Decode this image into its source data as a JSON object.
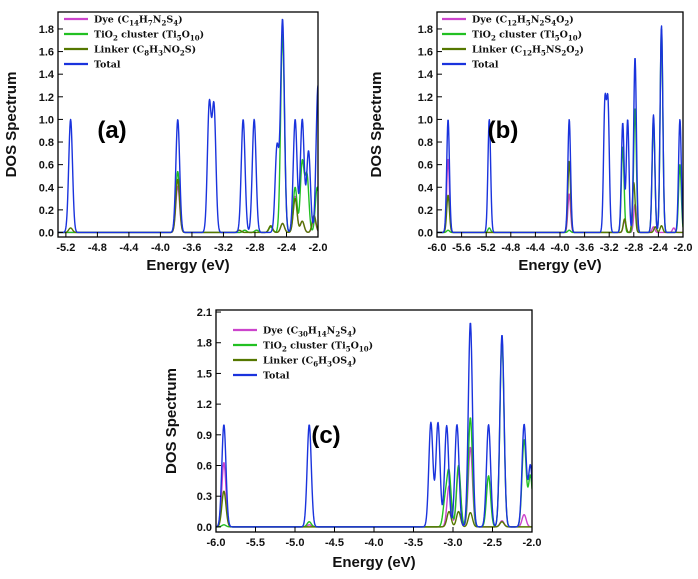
{
  "chart_data": [
    {
      "type": "line",
      "panel_label": "(a)",
      "xlabel": "Energy (eV)",
      "ylabel": "DOS Spectrum",
      "xlim": [
        -5.3,
        -2.0
      ],
      "ylim": [
        -0.04,
        1.95
      ],
      "xticks": [
        -5.2,
        -4.8,
        -4.4,
        -4.0,
        -3.6,
        -3.2,
        -2.8,
        -2.4,
        -2.0
      ],
      "xtick_labels": [
        "-5.2",
        "-4.8",
        "-4.4",
        "-4.0",
        "-3.6",
        "-3.2",
        "-2.8",
        "-2.4",
        "-2.0"
      ],
      "yticks": [
        0.0,
        0.2,
        0.4,
        0.6,
        0.8,
        1.0,
        1.2,
        1.4,
        1.6,
        1.8
      ],
      "ytick_labels": [
        "0.0",
        "0.2",
        "0.4",
        "0.6",
        "0.8",
        "1.0",
        "1.2",
        "1.4",
        "1.6",
        "1.8"
      ],
      "legend": [
        {
          "base": "Dye (C",
          "parts": [
            [
              "14",
              "sub"
            ],
            [
              "H",
              ""
            ],
            [
              "7",
              "sub"
            ],
            [
              "N",
              ""
            ],
            [
              "2",
              "sub"
            ],
            [
              "S",
              ""
            ],
            [
              "4",
              "sub"
            ],
            [
              ")",
              ""
            ]
          ]
        },
        {
          "base": "TiO",
          "parts": [
            [
              "2",
              "sub"
            ],
            [
              " cluster (Ti",
              ""
            ],
            [
              "5",
              "sub"
            ],
            [
              "O",
              ""
            ],
            [
              "10",
              "sub"
            ],
            [
              ")",
              ""
            ]
          ]
        },
        {
          "base": "Linker (C",
          "parts": [
            [
              "8",
              "sub"
            ],
            [
              "H",
              ""
            ],
            [
              "3",
              "sub"
            ],
            [
              "NO",
              ""
            ],
            [
              "2",
              "sub"
            ],
            [
              "S)",
              ""
            ]
          ]
        },
        {
          "base": "Total",
          "parts": []
        }
      ],
      "series": [
        {
          "name": "Dye",
          "color": "#cc44cc",
          "peaks": [
            [
              -3.78,
              0.41
            ],
            [
              -2.93,
              0.02
            ],
            [
              -2.78,
              0.02
            ],
            [
              -2.6,
              0.05
            ],
            [
              -2.45,
              0.08
            ],
            [
              -2.29,
              0.32
            ],
            [
              -2.2,
              0.1
            ],
            [
              -2.05,
              0.12
            ]
          ]
        },
        {
          "name": "TiO2 cluster",
          "color": "#22c022",
          "peaks": [
            [
              -3.78,
              0.54
            ],
            [
              -2.93,
              0.02
            ],
            [
              -2.78,
              0.02
            ],
            [
              -2.6,
              0.05
            ],
            [
              -2.45,
              1.76
            ],
            [
              -2.29,
              0.4
            ],
            [
              -2.2,
              0.62
            ],
            [
              -2.14,
              0.5
            ],
            [
              -2.01,
              0.4
            ]
          ]
        },
        {
          "name": "Linker",
          "color": "#557700",
          "peaks": [
            [
              -5.14,
              0.04
            ],
            [
              -3.78,
              0.47
            ],
            [
              -3.0,
              0.02
            ],
            [
              -2.6,
              0.06
            ],
            [
              -2.45,
              0.08
            ],
            [
              -2.29,
              0.3
            ],
            [
              -2.2,
              0.1
            ],
            [
              -2.05,
              0.15
            ]
          ]
        },
        {
          "name": "Total",
          "color": "#1a33dd",
          "peaks": [
            [
              -5.14,
              1.0
            ],
            [
              -3.78,
              1.0
            ],
            [
              -3.38,
              1.12
            ],
            [
              -3.32,
              1.1
            ],
            [
              -2.95,
              1.0
            ],
            [
              -2.81,
              1.0
            ],
            [
              -2.52,
              0.76
            ],
            [
              -2.45,
              1.88
            ],
            [
              -2.29,
              1.0
            ],
            [
              -2.2,
              1.0
            ],
            [
              -2.12,
              0.72
            ],
            [
              -2.0,
              1.3
            ]
          ]
        }
      ]
    },
    {
      "type": "line",
      "panel_label": "(b)",
      "xlabel": "Energy (eV)",
      "ylabel": "DOS Spectrum",
      "xlim": [
        -6.0,
        -2.0
      ],
      "ylim": [
        -0.04,
        1.95
      ],
      "xticks": [
        -6.0,
        -5.6,
        -5.2,
        -4.8,
        -4.4,
        -4.0,
        -3.6,
        -3.2,
        -2.8,
        -2.4,
        -2.0
      ],
      "xtick_labels": [
        "-6.0",
        "-5.6",
        "-5.2",
        "-4.8",
        "-4.4",
        "-4.0",
        "-3.6",
        "-3.2",
        "-2.8",
        "-2.4",
        "-2.0"
      ],
      "yticks": [
        0.0,
        0.2,
        0.4,
        0.6,
        0.8,
        1.0,
        1.2,
        1.4,
        1.6,
        1.8
      ],
      "ytick_labels": [
        "0.0",
        "0.2",
        "0.4",
        "0.6",
        "0.8",
        "1.0",
        "1.2",
        "1.4",
        "1.6",
        "1.8"
      ],
      "legend": [
        {
          "base": "Dye (C",
          "parts": [
            [
              "12",
              "sub"
            ],
            [
              "H",
              ""
            ],
            [
              "5",
              "sub"
            ],
            [
              "N",
              ""
            ],
            [
              "2",
              "sub"
            ],
            [
              "S",
              ""
            ],
            [
              "4",
              "sub"
            ],
            [
              "O",
              ""
            ],
            [
              "2",
              "sub"
            ],
            [
              ")",
              ""
            ]
          ]
        },
        {
          "base": "TiO",
          "parts": [
            [
              "2",
              "sub"
            ],
            [
              " cluster (Ti",
              ""
            ],
            [
              "5",
              "sub"
            ],
            [
              "O",
              ""
            ],
            [
              "10",
              "sub"
            ],
            [
              ")",
              ""
            ]
          ]
        },
        {
          "base": "Linker (C",
          "parts": [
            [
              "12",
              "sub"
            ],
            [
              "H",
              ""
            ],
            [
              "5",
              "sub"
            ],
            [
              "NS",
              ""
            ],
            [
              "2",
              "sub"
            ],
            [
              "O",
              ""
            ],
            [
              "2",
              "sub"
            ],
            [
              ")",
              ""
            ]
          ]
        },
        {
          "base": "Total",
          "parts": []
        }
      ],
      "series": [
        {
          "name": "Dye",
          "color": "#cc44cc",
          "peaks": [
            [
              -5.82,
              0.65
            ],
            [
              -3.85,
              0.34
            ],
            [
              -2.95,
              0.1
            ],
            [
              -2.78,
              0.25
            ],
            [
              -2.48,
              0.05
            ],
            [
              -2.15,
              0.04
            ]
          ]
        },
        {
          "name": "TiO2 cluster",
          "color": "#22c022",
          "peaks": [
            [
              -5.82,
              0.02
            ],
            [
              -5.15,
              0.04
            ],
            [
              -3.85,
              0.02
            ],
            [
              -2.98,
              0.76
            ],
            [
              -2.78,
              1.1
            ],
            [
              -2.48,
              1.0
            ],
            [
              -2.35,
              1.8
            ],
            [
              -2.05,
              0.6
            ]
          ]
        },
        {
          "name": "Linker",
          "color": "#557700",
          "peaks": [
            [
              -5.82,
              0.33
            ],
            [
              -3.85,
              0.63
            ],
            [
              -2.95,
              0.12
            ],
            [
              -2.8,
              0.44
            ],
            [
              -2.45,
              0.05
            ],
            [
              -2.35,
              0.06
            ]
          ]
        },
        {
          "name": "Total",
          "color": "#1a33dd",
          "peaks": [
            [
              -5.82,
              1.0
            ],
            [
              -5.15,
              1.0
            ],
            [
              -3.85,
              1.0
            ],
            [
              -3.27,
              1.12
            ],
            [
              -3.22,
              1.12
            ],
            [
              -2.98,
              0.97
            ],
            [
              -2.9,
              1.0
            ],
            [
              -2.78,
              1.55
            ],
            [
              -2.48,
              1.04
            ],
            [
              -2.35,
              1.83
            ],
            [
              -2.05,
              1.0
            ]
          ]
        }
      ]
    },
    {
      "type": "line",
      "panel_label": "(c)",
      "xlabel": "Energy (eV)",
      "ylabel": "DOS Spectrum",
      "xlim": [
        -6.0,
        -2.0
      ],
      "ylim": [
        -0.05,
        2.12
      ],
      "xticks": [
        -6.0,
        -5.5,
        -5.0,
        -4.5,
        -4.0,
        -3.5,
        -3.0,
        -2.5,
        -2.0
      ],
      "xtick_labels": [
        "-6.0",
        "-5.5",
        "-5.0",
        "-4.5",
        "-4.0",
        "-3.5",
        "-3.0",
        "-2.5",
        "-2.0"
      ],
      "yticks": [
        0.0,
        0.3,
        0.6,
        0.9,
        1.2,
        1.5,
        1.8,
        2.1
      ],
      "ytick_labels": [
        "0.0",
        "0.3",
        "0.6",
        "0.9",
        "1.2",
        "1.5",
        "1.8",
        "2.1"
      ],
      "legend": [
        {
          "base": "Dye (C",
          "parts": [
            [
              "30",
              "sub"
            ],
            [
              "H",
              ""
            ],
            [
              "14",
              "sub"
            ],
            [
              "N",
              ""
            ],
            [
              "2",
              "sub"
            ],
            [
              "S",
              ""
            ],
            [
              "4",
              "sub"
            ],
            [
              ")",
              ""
            ]
          ]
        },
        {
          "base": "TiO",
          "parts": [
            [
              "2",
              "sub"
            ],
            [
              " cluster (Ti",
              ""
            ],
            [
              "5",
              "sub"
            ],
            [
              "O",
              ""
            ],
            [
              "10",
              "sub"
            ],
            [
              ")",
              ""
            ]
          ]
        },
        {
          "base": "Linker (C",
          "parts": [
            [
              "6",
              "sub"
            ],
            [
              "H",
              ""
            ],
            [
              "3",
              "sub"
            ],
            [
              "OS",
              ""
            ],
            [
              "4",
              "sub"
            ],
            [
              ")",
              ""
            ]
          ]
        },
        {
          "base": "Total",
          "parts": []
        }
      ],
      "series": [
        {
          "name": "Dye",
          "color": "#cc44cc",
          "peaks": [
            [
              -5.9,
              0.63
            ],
            [
              -4.82,
              0.02
            ],
            [
              -3.05,
              0.4
            ],
            [
              -2.93,
              0.55
            ],
            [
              -2.78,
              0.78
            ],
            [
              -2.38,
              0.06
            ],
            [
              -2.1,
              0.12
            ]
          ]
        },
        {
          "name": "TiO2 cluster",
          "color": "#22c022",
          "peaks": [
            [
              -5.9,
              0.02
            ],
            [
              -4.82,
              0.05
            ],
            [
              -3.1,
              0.25
            ],
            [
              -3.05,
              0.52
            ],
            [
              -2.93,
              0.6
            ],
            [
              -2.78,
              1.07
            ],
            [
              -2.55,
              0.5
            ],
            [
              -2.38,
              1.82
            ],
            [
              -2.1,
              0.85
            ],
            [
              -2.02,
              0.5
            ]
          ]
        },
        {
          "name": "Linker",
          "color": "#557700",
          "peaks": [
            [
              -5.9,
              0.35
            ],
            [
              -3.05,
              0.15
            ],
            [
              -2.93,
              0.15
            ],
            [
              -2.78,
              0.14
            ],
            [
              -2.38,
              0.05
            ]
          ]
        },
        {
          "name": "Total",
          "color": "#1a33dd",
          "peaks": [
            [
              -5.9,
              1.0
            ],
            [
              -4.82,
              1.0
            ],
            [
              -3.28,
              1.02
            ],
            [
              -3.19,
              1.02
            ],
            [
              -3.08,
              0.99
            ],
            [
              -2.95,
              1.0
            ],
            [
              -2.78,
              2.0
            ],
            [
              -2.55,
              1.0
            ],
            [
              -2.38,
              1.88
            ],
            [
              -2.1,
              1.0
            ],
            [
              -2.02,
              0.6
            ]
          ]
        }
      ]
    }
  ]
}
